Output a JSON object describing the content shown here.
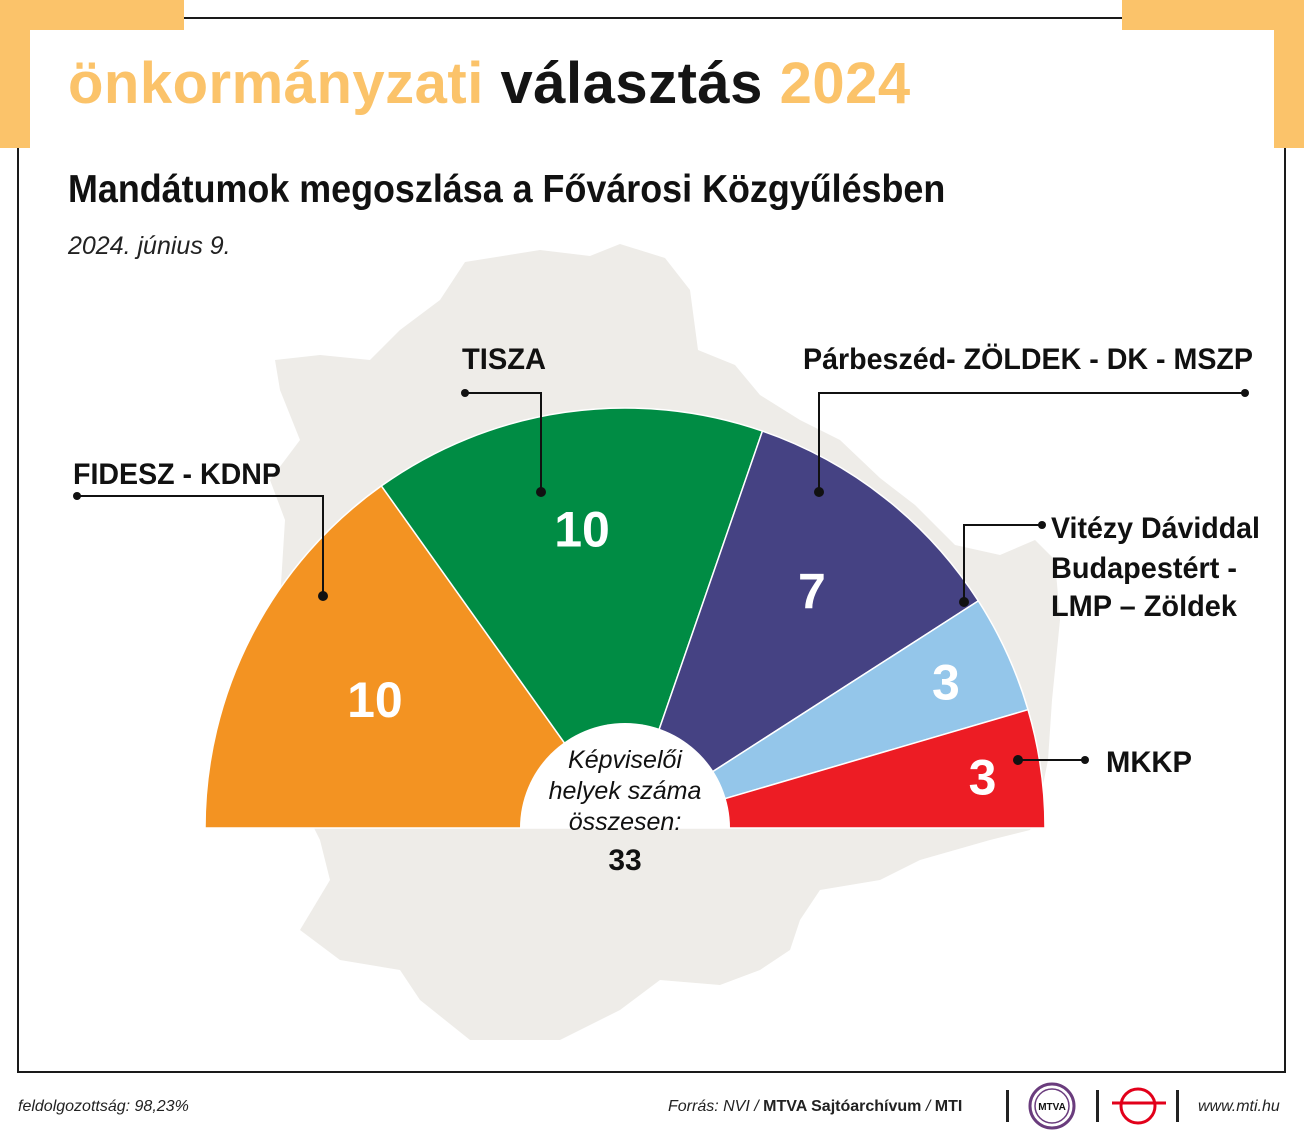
{
  "header": {
    "brand_part1": "önkormányzati",
    "brand_part2": "választás",
    "brand_part3": "2024",
    "title": "Mandátumok megoszlása a Fővárosi Közgyűlésben",
    "date": "2024. június 9."
  },
  "chart_data": {
    "type": "pie",
    "style": "half-donut (parliament seats)",
    "series": [
      {
        "name": "FIDESZ - KDNP",
        "value": 10,
        "label": "10",
        "color": "#f39322"
      },
      {
        "name": "TISZA",
        "value": 10,
        "label": "10",
        "color": "#008c44"
      },
      {
        "name": "Párbeszéd- ZÖLDEK - DK - MSZP",
        "value": 7,
        "label": "7",
        "color": "#454283"
      },
      {
        "name": "Vitézy Dáviddal Budapestért - LMP – Zöldek",
        "label_lines": [
          "Vitézy Dáviddal",
          "Budapestért -",
          "LMP – Zöldek"
        ],
        "value": 3,
        "label": "3",
        "color": "#94c6ea"
      },
      {
        "name": "MKKP",
        "value": 3,
        "label": "3",
        "color": "#ed1c24"
      }
    ],
    "center_label_lines": [
      "Képviselői",
      "helyek száma",
      "összesen:"
    ],
    "total": "33"
  },
  "footer": {
    "processed": "feldolgozottság: 98,23%",
    "source_prefix": "Forrás: NVI /",
    "source_bold": "MTVA Sajtóarchívum",
    "source_suffix": "/",
    "source_bold2": "MTI",
    "logo1_text": "MTVA",
    "website": "www.mti.hu"
  },
  "colors": {
    "accent_gold": "#fbc36a",
    "map_background": "#eeece8"
  }
}
